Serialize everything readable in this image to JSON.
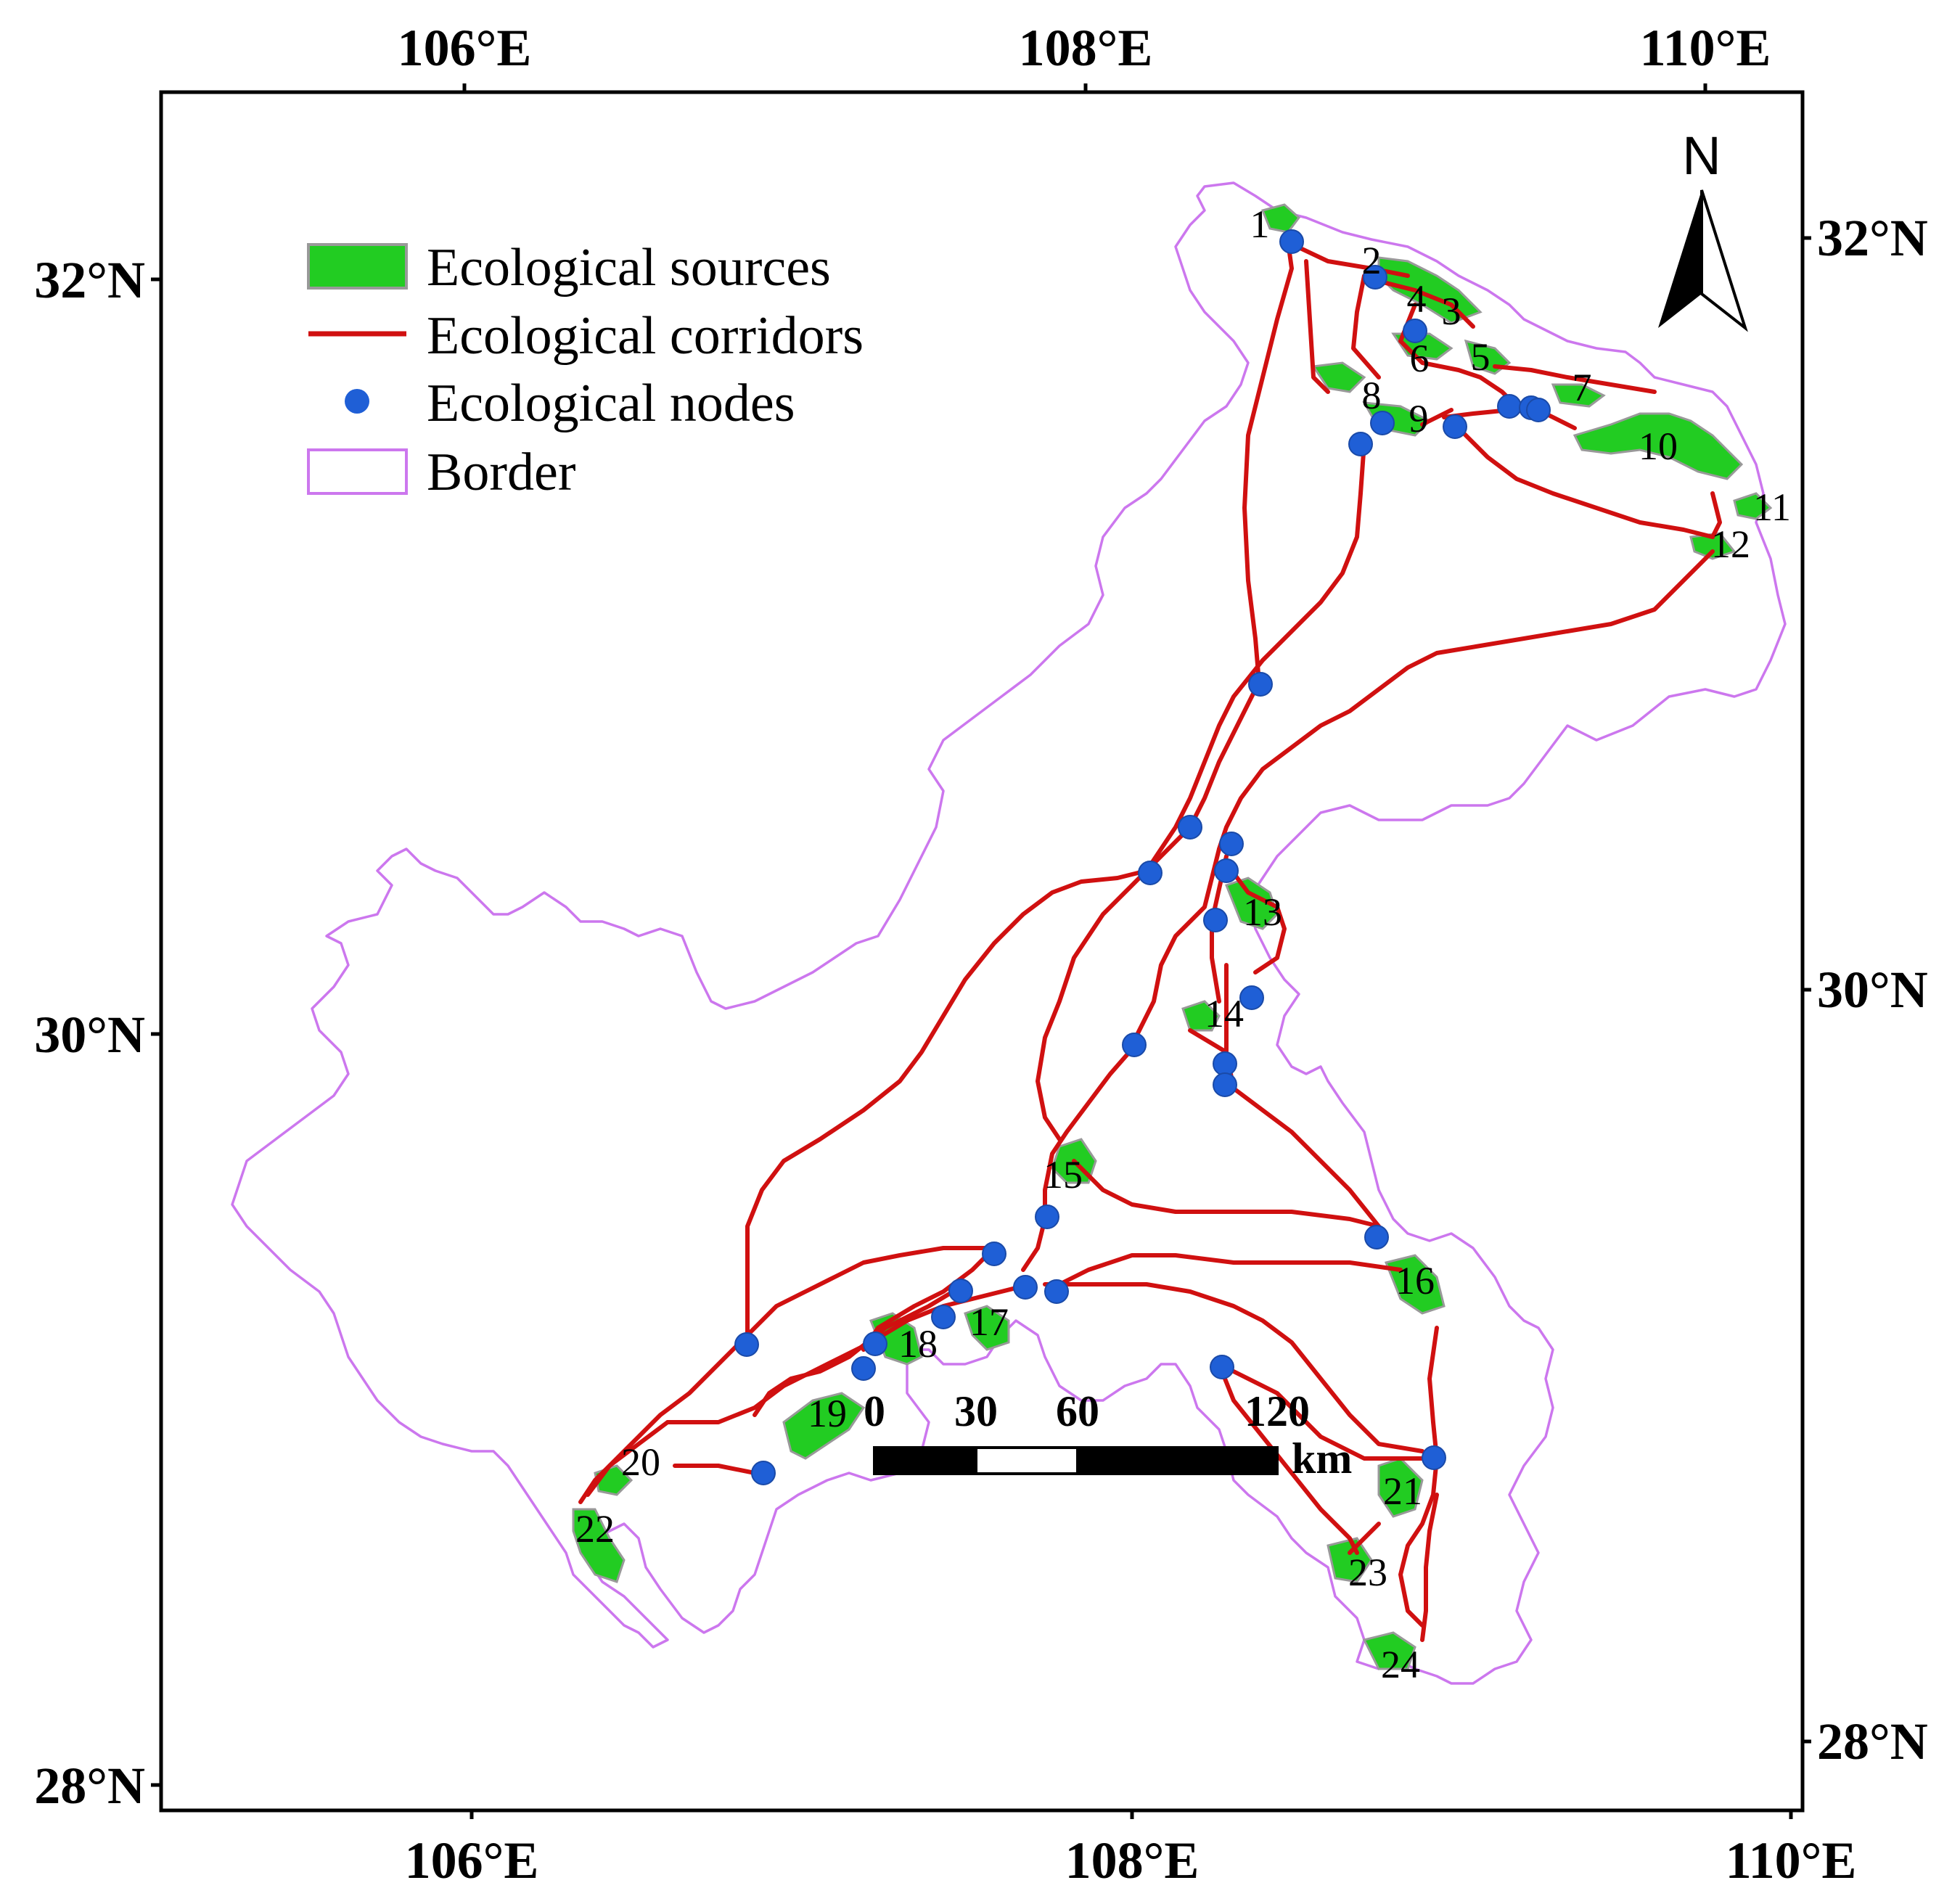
{
  "axes": {
    "top": [
      "106°E",
      "108°E",
      "110°E"
    ],
    "bottom": [
      "106°E",
      "108°E",
      "110°E"
    ],
    "left": [
      "32°N",
      "30°N",
      "28°N"
    ],
    "right": [
      "32°N",
      "30°N",
      "28°N"
    ]
  },
  "legend": {
    "sources": "Ecological sources",
    "corridors": "Ecological corridors",
    "nodes": "Ecological nodes",
    "border": "Border"
  },
  "north_label": "N",
  "scale_bar": {
    "labels": [
      "0",
      "30",
      "60",
      "120"
    ],
    "unit": "km"
  },
  "source_labels": [
    "1",
    "2",
    "3",
    "4",
    "5",
    "6",
    "7",
    "8",
    "9",
    "10",
    "11",
    "12",
    "13",
    "14",
    "15",
    "16",
    "17",
    "18",
    "19",
    "20",
    "21",
    "22",
    "23",
    "24"
  ],
  "colors": {
    "border": "#cc77ee",
    "corridor": "#d01010",
    "source": "#22cc22",
    "node": "#1f5fd6",
    "frame": "#000000"
  }
}
